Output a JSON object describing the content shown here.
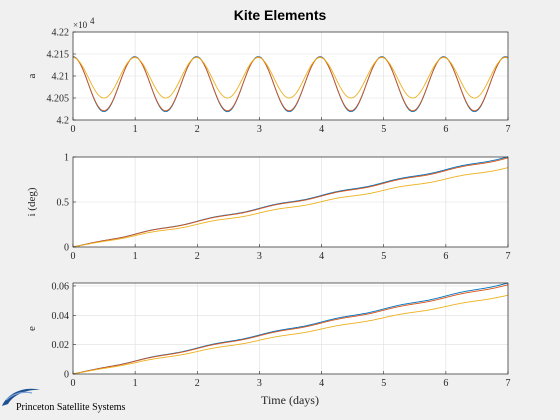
{
  "figure": {
    "title": "Kite Elements",
    "xlabel": "Time (days)"
  },
  "logo": {
    "text": "Princeton Satellite Systems"
  },
  "colors": {
    "background": "#f0f0f0",
    "axes_bg": "#ffffff",
    "grid": "#dfdfdf",
    "axis": "#262626",
    "series": [
      "#0072BD",
      "#D95319",
      "#EDB120"
    ],
    "logo": "#1d4f91"
  },
  "chart_data": [
    {
      "type": "line",
      "title": "Kite Elements",
      "xlabel": "",
      "ylabel": "a",
      "exponent_label": "×10",
      "exponent_power": "4",
      "xlim": [
        0,
        7
      ],
      "ylim": [
        4.2,
        4.22
      ],
      "xticks": [
        "0",
        "1",
        "2",
        "3",
        "4",
        "5",
        "6",
        "7"
      ],
      "yticks": [
        "4.2",
        "4.205",
        "4.21",
        "4.215",
        "4.22"
      ],
      "grid": true,
      "series": [
        {
          "color": "#0072BD",
          "model": "osc",
          "mean": 4.20815,
          "amp": 0.00625,
          "period": 0.994,
          "phase": 0
        },
        {
          "color": "#D95319",
          "model": "osc",
          "mean": 4.2082,
          "amp": 0.0061,
          "period": 0.994,
          "phase": 0
        },
        {
          "color": "#EDB120",
          "model": "osc",
          "mean": 4.2096,
          "amp": 0.0046,
          "period": 0.994,
          "phase": 0
        }
      ]
    },
    {
      "type": "line",
      "xlabel": "",
      "ylabel": "i (deg)",
      "xlim": [
        0,
        7
      ],
      "ylim": [
        0,
        1
      ],
      "xticks": [
        "0",
        "1",
        "2",
        "3",
        "4",
        "5",
        "6",
        "7"
      ],
      "yticks": [
        "0",
        "0.5",
        "1"
      ],
      "grid": true,
      "series": [
        {
          "color": "#0072BD",
          "model": "ramp",
          "slope": 0.1433,
          "wiggle": 0.012
        },
        {
          "color": "#D95319",
          "model": "ramp",
          "slope": 0.1415,
          "wiggle": 0.012
        },
        {
          "color": "#EDB120",
          "model": "ramp",
          "slope": 0.126,
          "wiggle": 0.011
        }
      ]
    },
    {
      "type": "line",
      "xlabel": "Time (days)",
      "ylabel": "e",
      "xlim": [
        0,
        7
      ],
      "ylim": [
        0,
        0.062
      ],
      "xticks": [
        "0",
        "1",
        "2",
        "3",
        "4",
        "5",
        "6",
        "7"
      ],
      "yticks": [
        "0",
        "0.02",
        "0.04",
        "0.06"
      ],
      "grid": true,
      "series": [
        {
          "color": "#0072BD",
          "model": "ramp",
          "slope": 0.00886,
          "wiggle": 0.0006
        },
        {
          "color": "#D95319",
          "model": "ramp",
          "slope": 0.00869,
          "wiggle": 0.0006
        },
        {
          "color": "#EDB120",
          "model": "ramp",
          "slope": 0.00767,
          "wiggle": 0.0005
        }
      ]
    }
  ]
}
